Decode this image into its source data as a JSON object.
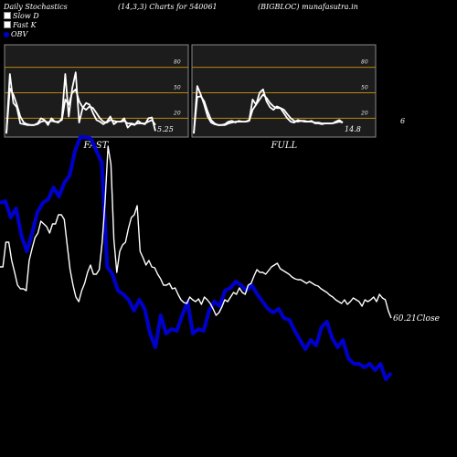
{
  "header": {
    "left": "Daily Stochastics",
    "params": "(14,3,3) Charts for 540061",
    "right": "(BIGBLOC) munafasutra.in"
  },
  "legend": [
    {
      "label": "Slow  D",
      "color": "#ffffff",
      "shape": "square"
    },
    {
      "label": "Fast K",
      "color": "#ffffff",
      "shape": "square"
    },
    {
      "label": "OBV",
      "color": "#0000cc",
      "shape": "circle"
    }
  ],
  "chart_data": [
    {
      "type": "line",
      "title": "FAST",
      "ylim": [
        0,
        100
      ],
      "y_ticks": [
        "80",
        "50",
        "20"
      ],
      "reference_lines": [
        80,
        50,
        20
      ],
      "last_value_label": "5.25",
      "series": [
        {
          "name": "Fast K",
          "values": [
            2,
            72,
            38,
            33,
            14,
            13,
            12,
            12,
            12,
            14,
            20,
            18,
            12,
            20,
            16,
            15,
            20,
            72,
            22,
            55,
            74,
            15,
            32,
            38,
            36,
            26,
            18,
            16,
            13,
            16,
            22,
            13,
            16,
            16,
            20,
            9,
            13,
            12,
            17,
            14,
            13,
            20,
            21,
            5
          ]
        },
        {
          "name": "Slow  D",
          "values": [
            2,
            55,
            48,
            36,
            22,
            15,
            13,
            12,
            12,
            13,
            16,
            17,
            15,
            17,
            16,
            16,
            18,
            42,
            36,
            50,
            54,
            40,
            33,
            30,
            34,
            32,
            26,
            20,
            16,
            15,
            18,
            17,
            16,
            16,
            17,
            14,
            14,
            13,
            14,
            14,
            14,
            16,
            18,
            12
          ]
        }
      ]
    },
    {
      "type": "line",
      "title": "FULL",
      "ylim": [
        0,
        100
      ],
      "y_ticks": [
        "80",
        "50",
        "20"
      ],
      "reference_lines": [
        80,
        50,
        20
      ],
      "last_value_label": "14.8",
      "series": [
        {
          "name": "Fast K",
          "values": [
            2,
            58,
            48,
            36,
            22,
            15,
            13,
            12,
            12,
            13,
            16,
            17,
            15,
            17,
            16,
            16,
            18,
            42,
            36,
            50,
            54,
            40,
            33,
            30,
            34,
            32,
            26,
            20,
            16,
            15,
            18,
            17,
            16,
            16,
            17,
            14,
            14,
            13,
            14,
            14,
            14,
            16,
            18,
            15
          ]
        },
        {
          "name": "Slow  D",
          "values": [
            2,
            45,
            46,
            40,
            28,
            18,
            14,
            12,
            12,
            12,
            14,
            15,
            16,
            16,
            16,
            16,
            17,
            30,
            36,
            42,
            48,
            44,
            38,
            34,
            32,
            32,
            30,
            25,
            20,
            17,
            16,
            17,
            17,
            16,
            16,
            15,
            15,
            14,
            14,
            14,
            14,
            15,
            16,
            15
          ]
        }
      ]
    },
    {
      "type": "line",
      "title": "",
      "y_ticks": [],
      "right_labels": [
        "6",
        "60.21Close"
      ],
      "series": [
        {
          "name": "OBV",
          "color": "#0000cc",
          "values": [
            222,
            220,
            238,
            228,
            258,
            275,
            255,
            232,
            222,
            218,
            205,
            215,
            200,
            192,
            165,
            150,
            150,
            152,
            165,
            178,
            292,
            300,
            318,
            322,
            328,
            340,
            328,
            338,
            365,
            380,
            345,
            365,
            360,
            362,
            345,
            330,
            365,
            360,
            362,
            340,
            330,
            335,
            318,
            315,
            308,
            312,
            318,
            312,
            322,
            330,
            338,
            342,
            338,
            348,
            350,
            362,
            372,
            382,
            372,
            378,
            358,
            352,
            370,
            380,
            372,
            392,
            398,
            398,
            402,
            398,
            405,
            398,
            415,
            408
          ]
        },
        {
          "name": "Close",
          "color": "#ffffff",
          "values": [
            292,
            292,
            265,
            265,
            285,
            298,
            312,
            316,
            316,
            318,
            285,
            272,
            260,
            255,
            242,
            245,
            248,
            255,
            245,
            245,
            235,
            235,
            240,
            268,
            295,
            312,
            325,
            330,
            318,
            310,
            298,
            290,
            300,
            300,
            295,
            265,
            220,
            160,
            180,
            262,
            298,
            275,
            268,
            265,
            250,
            238,
            235,
            225,
            275,
            282,
            290,
            285,
            292,
            293,
            300,
            305,
            312,
            312,
            310,
            316,
            315,
            322,
            328,
            331,
            332,
            325,
            328,
            330,
            327,
            333,
            325,
            328,
            332,
            338,
            345,
            342,
            336,
            328,
            330,
            325,
            320,
            322,
            315,
            320,
            322,
            312,
            310,
            302,
            295,
            298,
            298,
            300,
            296,
            292,
            290,
            288,
            294,
            296,
            298,
            300,
            303,
            305,
            306,
            306,
            308,
            310,
            308,
            310,
            312,
            313,
            316,
            318,
            320,
            323,
            325,
            328,
            330,
            332,
            328,
            333,
            330,
            326,
            328,
            330,
            335,
            328,
            330,
            328,
            325,
            330,
            322,
            326,
            328,
            340,
            348
          ]
        }
      ]
    }
  ]
}
